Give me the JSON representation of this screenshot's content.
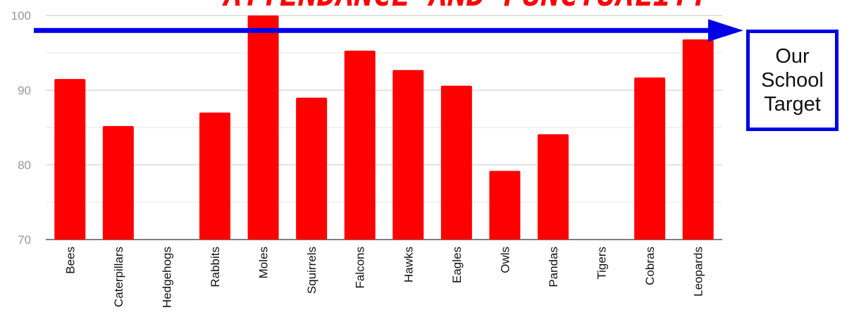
{
  "chart_data": {
    "type": "bar",
    "title": "ATTENDANCE AND PUNCTUALITY",
    "categories": [
      "Bees",
      "Caterpillars",
      "Hedgehogs",
      "Rabbits",
      "Moles",
      "Squirrels",
      "Falcons",
      "Hawks",
      "Eagles",
      "Owls",
      "Pandas",
      "Tigers",
      "Cobras",
      "Leopards"
    ],
    "values": [
      91.5,
      85.2,
      null,
      87.0,
      100.0,
      89.0,
      95.3,
      92.7,
      90.6,
      79.2,
      84.1,
      null,
      91.7,
      96.8
    ],
    "ylim": [
      70,
      100
    ],
    "yticks": [
      70,
      80,
      90,
      100
    ],
    "grid": true,
    "bar_color": "#ff0000",
    "target": {
      "value": 98,
      "label_lines": [
        "Our",
        "School",
        "Target"
      ],
      "color": "#0000e6"
    }
  }
}
